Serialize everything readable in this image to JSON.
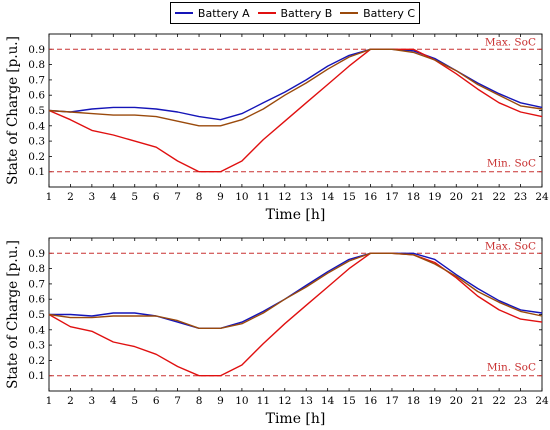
{
  "legend": {
    "items": [
      {
        "label": "Battery A",
        "color": "#1515b8"
      },
      {
        "label": "Battery B",
        "color": "#e01010"
      },
      {
        "label": "Battery C",
        "color": "#9a4a0c"
      }
    ]
  },
  "chart_data": [
    {
      "type": "line",
      "xlabel": "Time [h]",
      "ylabel": "State of Charge [p.u.]",
      "xlim": [
        1,
        24
      ],
      "ylim": [
        0,
        1.0
      ],
      "x": [
        1,
        2,
        3,
        4,
        5,
        6,
        7,
        8,
        9,
        10,
        11,
        12,
        13,
        14,
        15,
        16,
        17,
        18,
        19,
        20,
        21,
        22,
        23,
        24
      ],
      "xticks": [
        "1",
        "2",
        "3",
        "4",
        "5",
        "6",
        "7",
        "8",
        "9",
        "10",
        "11",
        "12",
        "13",
        "14",
        "15",
        "16",
        "17",
        "18",
        "19",
        "20",
        "21",
        "22",
        "23",
        "24"
      ],
      "yticks": [
        "0.1",
        "0.2",
        "0.3",
        "0.4",
        "0.5",
        "0.6",
        "0.7",
        "0.8",
        "0.9"
      ],
      "grid": false,
      "reference_lines": [
        {
          "label": "Max. SoC",
          "y": 0.9,
          "color": "#c83030"
        },
        {
          "label": "Min. SoC",
          "y": 0.1,
          "color": "#c83030"
        }
      ],
      "series": [
        {
          "name": "Battery A",
          "color": "#1515b8",
          "values": [
            0.5,
            0.49,
            0.51,
            0.52,
            0.52,
            0.51,
            0.49,
            0.46,
            0.44,
            0.48,
            0.55,
            0.62,
            0.7,
            0.79,
            0.86,
            0.9,
            0.9,
            0.89,
            0.84,
            0.76,
            0.68,
            0.61,
            0.55,
            0.52
          ]
        },
        {
          "name": "Battery B",
          "color": "#e01010",
          "values": [
            0.5,
            0.44,
            0.37,
            0.34,
            0.3,
            0.26,
            0.17,
            0.1,
            0.1,
            0.17,
            0.31,
            0.43,
            0.55,
            0.67,
            0.79,
            0.9,
            0.9,
            0.9,
            0.83,
            0.74,
            0.64,
            0.55,
            0.49,
            0.46
          ]
        },
        {
          "name": "Battery C",
          "color": "#9a4a0c",
          "values": [
            0.5,
            0.49,
            0.48,
            0.47,
            0.47,
            0.46,
            0.43,
            0.4,
            0.4,
            0.44,
            0.51,
            0.6,
            0.68,
            0.77,
            0.85,
            0.9,
            0.9,
            0.88,
            0.83,
            0.76,
            0.67,
            0.6,
            0.53,
            0.51
          ]
        }
      ]
    },
    {
      "type": "line",
      "xlabel": "Time [h]",
      "ylabel": "State of Charge [p.u.]",
      "xlim": [
        1,
        24
      ],
      "ylim": [
        0,
        1.0
      ],
      "x": [
        1,
        2,
        3,
        4,
        5,
        6,
        7,
        8,
        9,
        10,
        11,
        12,
        13,
        14,
        15,
        16,
        17,
        18,
        19,
        20,
        21,
        22,
        23,
        24
      ],
      "xticks": [
        "1",
        "2",
        "3",
        "4",
        "5",
        "6",
        "7",
        "8",
        "9",
        "10",
        "11",
        "12",
        "13",
        "14",
        "15",
        "16",
        "17",
        "18",
        "19",
        "20",
        "21",
        "22",
        "23",
        "24"
      ],
      "yticks": [
        "0.1",
        "0.2",
        "0.3",
        "0.4",
        "0.5",
        "0.6",
        "0.7",
        "0.8",
        "0.9"
      ],
      "grid": false,
      "reference_lines": [
        {
          "label": "Max. SoC",
          "y": 0.9,
          "color": "#c83030"
        },
        {
          "label": "Min. SoC",
          "y": 0.1,
          "color": "#c83030"
        }
      ],
      "series": [
        {
          "name": "Battery A",
          "color": "#1515b8",
          "values": [
            0.5,
            0.5,
            0.49,
            0.51,
            0.51,
            0.49,
            0.45,
            0.41,
            0.41,
            0.45,
            0.52,
            0.6,
            0.69,
            0.78,
            0.86,
            0.9,
            0.9,
            0.9,
            0.86,
            0.76,
            0.67,
            0.59,
            0.53,
            0.51
          ]
        },
        {
          "name": "Battery B",
          "color": "#e01010",
          "values": [
            0.5,
            0.42,
            0.39,
            0.32,
            0.29,
            0.24,
            0.16,
            0.1,
            0.1,
            0.17,
            0.31,
            0.44,
            0.56,
            0.68,
            0.8,
            0.9,
            0.9,
            0.89,
            0.84,
            0.74,
            0.62,
            0.53,
            0.47,
            0.45
          ]
        },
        {
          "name": "Battery C",
          "color": "#9a4a0c",
          "values": [
            0.5,
            0.48,
            0.48,
            0.49,
            0.49,
            0.49,
            0.46,
            0.41,
            0.41,
            0.44,
            0.51,
            0.6,
            0.68,
            0.77,
            0.85,
            0.9,
            0.9,
            0.89,
            0.83,
            0.75,
            0.65,
            0.58,
            0.52,
            0.49
          ]
        }
      ]
    }
  ]
}
